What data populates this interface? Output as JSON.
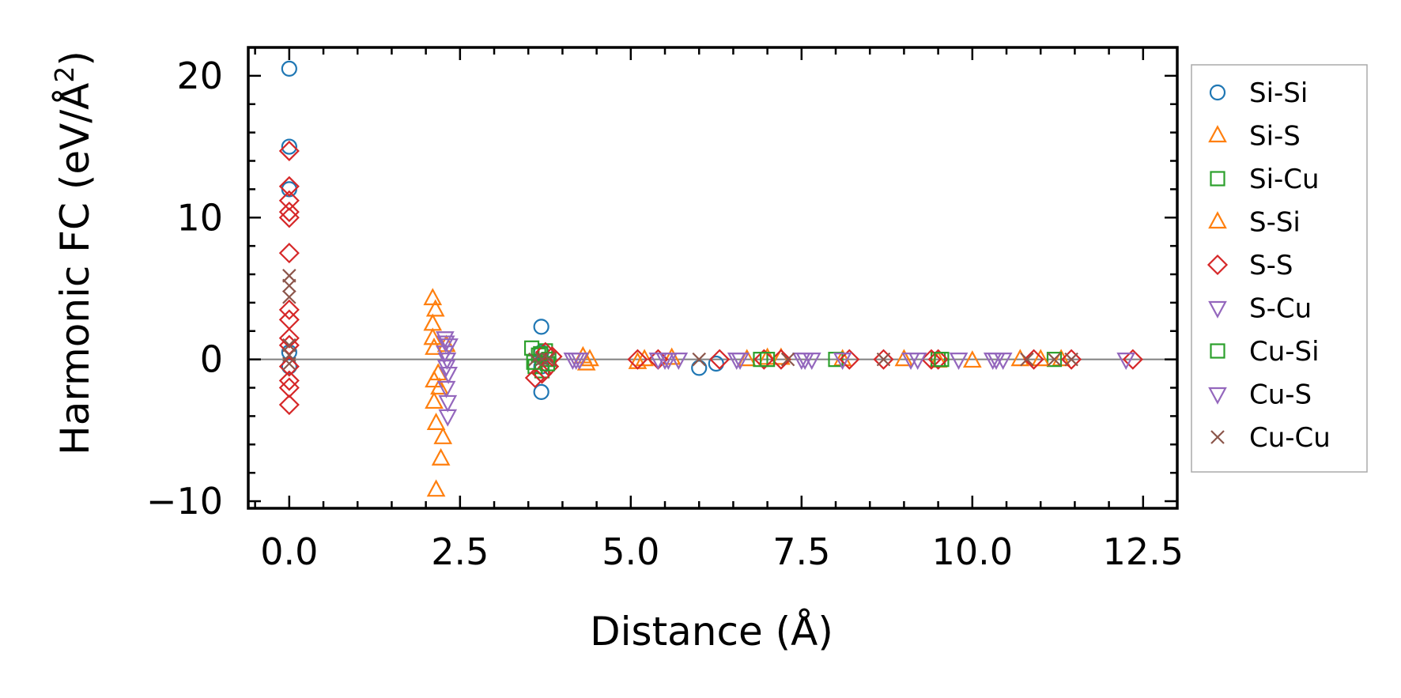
{
  "chart_data": {
    "type": "scatter",
    "xlabel": "Distance (Å)",
    "ylabel_main": "Harmonic FC (eV/Å",
    "ylabel_sup": "2",
    "ylabel_close": ")",
    "xlim": [
      -0.6,
      13.0
    ],
    "ylim": [
      -10.5,
      22.0
    ],
    "xticks": [
      0.0,
      2.5,
      5.0,
      7.5,
      10.0,
      12.5
    ],
    "xtick_labels": [
      "0.0",
      "2.5",
      "5.0",
      "7.5",
      "10.0",
      "12.5"
    ],
    "yticks": [
      -10,
      0,
      10,
      20
    ],
    "ytick_labels": [
      "−10",
      "0",
      "10",
      "20"
    ],
    "zero_line": 0,
    "legend_position": "outside-right",
    "series": [
      {
        "name": "Si-Si",
        "marker": "circle",
        "color": "#1f77b4",
        "x": [
          0.0,
          0.0,
          0.0,
          0.0,
          0.0,
          3.69,
          3.69,
          3.69,
          3.69,
          6.0,
          6.25
        ],
        "y": [
          20.5,
          15.0,
          12.0,
          0.5,
          -0.5,
          2.3,
          0.5,
          -0.5,
          -2.3,
          -0.6,
          -0.3
        ]
      },
      {
        "name": "Si-S",
        "marker": "triangle-up",
        "color": "#ff7f0e",
        "x": [
          2.1,
          2.1,
          2.1,
          2.12,
          2.12,
          2.12,
          2.15,
          2.15,
          2.2,
          2.22,
          2.25,
          2.3,
          4.3,
          4.35,
          5.1,
          5.6,
          6.7,
          7.0,
          8.1,
          9.5,
          10.7,
          11.3
        ],
        "y": [
          4.3,
          2.5,
          1.5,
          0.8,
          -1.5,
          -3.0,
          -4.5,
          -9.2,
          -2.0,
          -7.0,
          -5.5,
          1.0,
          0.2,
          -0.3,
          -0.2,
          0.1,
          0.0,
          0.1,
          0.0,
          -0.1,
          0.0,
          0.0
        ]
      },
      {
        "name": "Si-Cu",
        "marker": "square",
        "color": "#2ca02c",
        "x": [
          3.55,
          3.6,
          3.65,
          3.7,
          3.75,
          3.8,
          6.9,
          8.0,
          9.5,
          11.2
        ],
        "y": [
          0.8,
          -0.5,
          0.3,
          -0.8,
          0.6,
          0.0,
          0.0,
          0.0,
          0.0,
          0.0
        ]
      },
      {
        "name": "S-Si",
        "marker": "triangle-up",
        "color": "#ff7f0e",
        "x": [
          2.14,
          2.18,
          4.4,
          5.2,
          7.2,
          9.0,
          10.0,
          11.0
        ],
        "y": [
          3.5,
          -1.0,
          0.0,
          0.0,
          0.1,
          0.0,
          -0.1,
          0.0
        ]
      },
      {
        "name": "S-S",
        "marker": "diamond",
        "color": "#d62728",
        "x": [
          0.0,
          0.0,
          0.0,
          0.0,
          0.0,
          0.0,
          0.0,
          0.0,
          0.0,
          0.0,
          0.0,
          0.0,
          0.0,
          0.0,
          3.6,
          3.7,
          3.75,
          3.8,
          3.85,
          5.1,
          5.4,
          6.3,
          6.95,
          7.2,
          8.2,
          8.7,
          9.4,
          9.5,
          10.9,
          11.45,
          12.35
        ],
        "y": [
          14.7,
          12.2,
          11.2,
          10.4,
          10.0,
          7.5,
          3.5,
          2.8,
          1.5,
          1.0,
          -0.5,
          -1.5,
          -2.0,
          -3.2,
          -1.3,
          -1.0,
          0.5,
          -0.5,
          0.2,
          0.0,
          0.0,
          0.0,
          0.0,
          0.0,
          0.0,
          0.0,
          0.0,
          0.0,
          0.0,
          0.0,
          0.0
        ]
      },
      {
        "name": "S-Cu",
        "marker": "triangle-down",
        "color": "#9467bd",
        "x": [
          2.28,
          2.28,
          2.3,
          2.3,
          2.32,
          2.32,
          2.34,
          4.15,
          4.25,
          5.4,
          5.55,
          5.7,
          6.55,
          7.5,
          7.65,
          8.1,
          9.2,
          9.8,
          10.3,
          10.45,
          12.25
        ],
        "y": [
          1.5,
          0.5,
          -0.5,
          -2.0,
          -3.0,
          -4.0,
          1.0,
          0.0,
          0.0,
          0.0,
          0.0,
          0.0,
          0.0,
          0.0,
          0.0,
          0.0,
          0.0,
          0.0,
          0.0,
          0.0,
          0.0
        ]
      },
      {
        "name": "Cu-Si",
        "marker": "square",
        "color": "#2ca02c",
        "x": [
          3.58,
          3.68,
          3.78,
          7.0,
          9.55
        ],
        "y": [
          -0.2,
          0.4,
          -0.3,
          0.0,
          0.0
        ]
      },
      {
        "name": "Cu-S",
        "marker": "triangle-down",
        "color": "#9467bd",
        "x": [
          2.29,
          2.31,
          2.33,
          4.2,
          5.5,
          6.6,
          7.55,
          9.1,
          10.35
        ],
        "y": [
          1.2,
          0.0,
          -1.0,
          0.0,
          0.0,
          0.0,
          0.0,
          0.0,
          0.0
        ]
      },
      {
        "name": "Cu-Cu",
        "marker": "x",
        "color": "#8c564b",
        "x": [
          0.0,
          0.0,
          0.0,
          0.0,
          0.0,
          0.0,
          3.6,
          3.7,
          3.8,
          6.0,
          7.3,
          8.7,
          10.8,
          11.2,
          11.45
        ],
        "y": [
          5.9,
          5.2,
          4.4,
          1.0,
          0.3,
          -0.3,
          0.0,
          0.0,
          0.0,
          0.0,
          0.0,
          0.0,
          0.0,
          0.0,
          0.0
        ]
      }
    ]
  }
}
